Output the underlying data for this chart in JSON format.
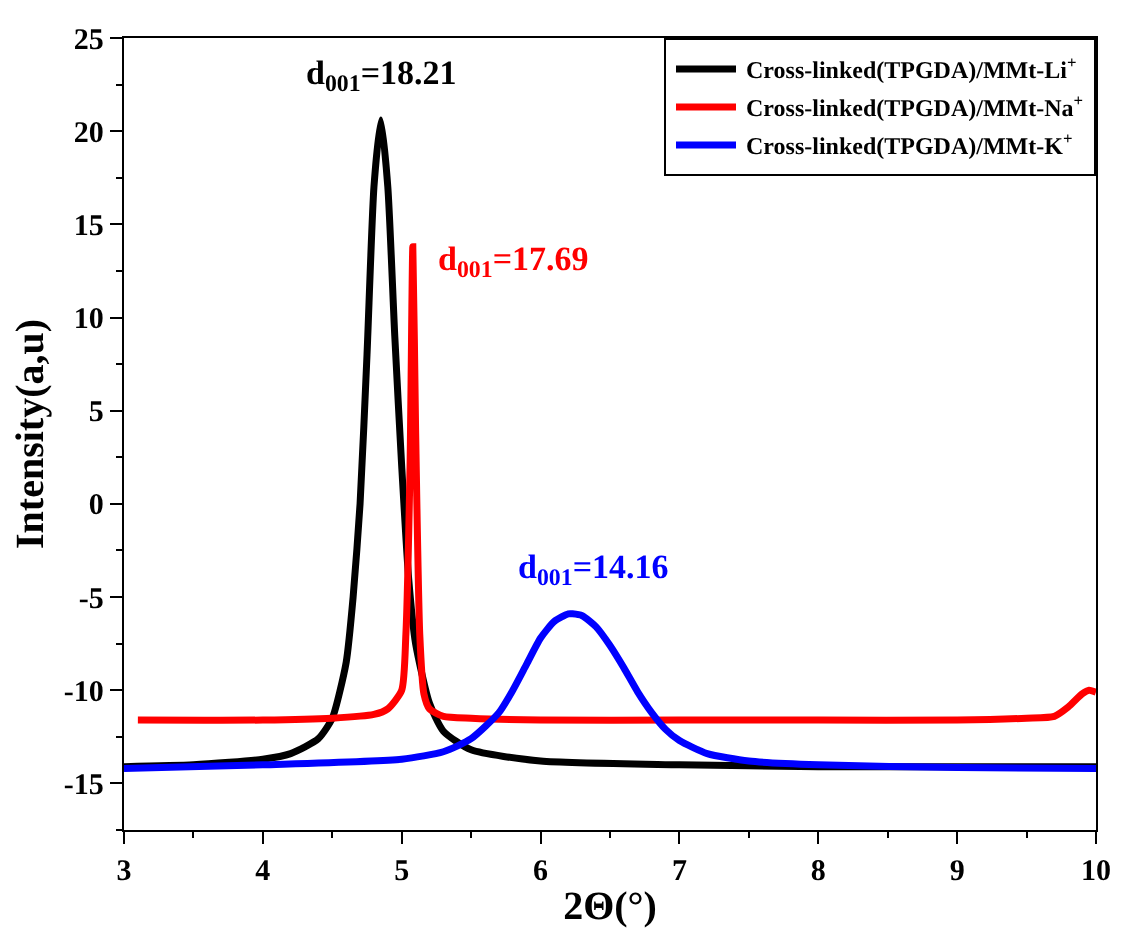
{
  "chart_data": {
    "type": "line",
    "xlabel": "2Θ(°)",
    "ylabel": "Intensity(a,u)",
    "xlim": [
      3,
      10
    ],
    "xticks": [
      3,
      4,
      5,
      6,
      7,
      8,
      9,
      10
    ],
    "ylim": [
      -17.5,
      25
    ],
    "yticks": [
      -15,
      -10,
      -5,
      0,
      5,
      10,
      15,
      20,
      25
    ],
    "legend": "top right",
    "marker": "none",
    "line_style": "solid",
    "series": [
      {
        "name": "Cross-linked(TPGDA)/MMt-Li$^{+}$",
        "color": "#000000",
        "x": [
          3,
          3.5,
          4,
          4.2,
          4.4,
          4.5,
          4.6,
          4.65,
          4.7,
          4.75,
          4.8,
          4.85,
          4.9,
          4.95,
          5.0,
          5.05,
          5.1,
          5.2,
          5.3,
          5.5,
          6,
          7,
          8,
          9,
          10
        ],
        "values": [
          -14.1,
          -14.0,
          -13.7,
          -13.4,
          -12.6,
          -11.5,
          -8.5,
          -5,
          0,
          8,
          17,
          20.6,
          17,
          9,
          2,
          -4,
          -7.5,
          -10.7,
          -12.2,
          -13.2,
          -13.8,
          -14.0,
          -14.1,
          -14.1,
          -14.1
        ]
      },
      {
        "name": "Cross-linked(TPGDA)/MMt-Na$^{+}$",
        "color": "#ff0000",
        "x": [
          3.1,
          4,
          4.5,
          4.8,
          4.9,
          5.0,
          5.03,
          5.06,
          5.08,
          5.1,
          5.13,
          5.16,
          5.2,
          5.3,
          5.5,
          6,
          7,
          8,
          9,
          9.5,
          9.7,
          9.8,
          9.9,
          9.95,
          10
        ],
        "values": [
          -11.6,
          -11.6,
          -11.5,
          -11.3,
          -11.0,
          -10.0,
          -7,
          2,
          13.8,
          4,
          -7,
          -10.2,
          -11.0,
          -11.4,
          -11.5,
          -11.6,
          -11.6,
          -11.6,
          -11.6,
          -11.5,
          -11.4,
          -10.9,
          -10.2,
          -10.0,
          -10.1
        ]
      },
      {
        "name": "Cross-linked(TPGDA)/MMt-K$^{+}$",
        "color": "#0000ff",
        "x": [
          3,
          4,
          5,
          5.3,
          5.5,
          5.7,
          5.8,
          5.9,
          6.0,
          6.1,
          6.2,
          6.23,
          6.3,
          6.4,
          6.5,
          6.6,
          6.7,
          6.8,
          6.9,
          7.0,
          7.2,
          7.5,
          8,
          9,
          10
        ],
        "values": [
          -14.2,
          -14.0,
          -13.7,
          -13.3,
          -12.6,
          -11.2,
          -10.0,
          -8.6,
          -7.2,
          -6.3,
          -5.9,
          -5.9,
          -6.0,
          -6.6,
          -7.6,
          -8.8,
          -10.1,
          -11.2,
          -12.1,
          -12.7,
          -13.4,
          -13.8,
          -14.0,
          -14.15,
          -14.2
        ]
      }
    ],
    "annotations": [
      {
        "text": "d$_{001}$=18.21",
        "x": 4.85,
        "y": 20.6
      },
      {
        "text": "d$_{001}$=17.69",
        "x": 5.08,
        "y": 13.8
      },
      {
        "text": "d$_{001}$=14.16",
        "x": 6.23,
        "y": -5.9
      }
    ]
  }
}
